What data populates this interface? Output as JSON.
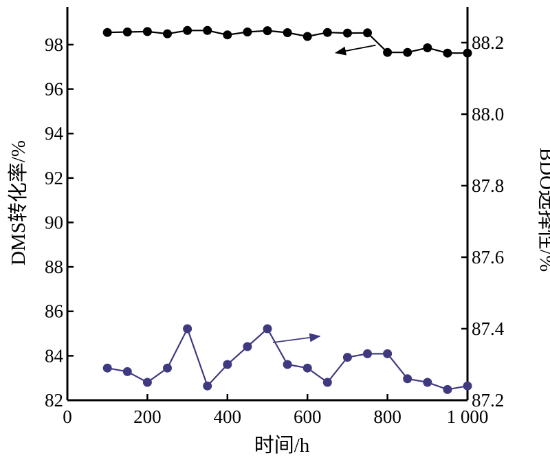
{
  "chart_data": {
    "type": "line",
    "xlabel": "时间/h",
    "ylabel_left": "DMS转化率/%",
    "ylabel_right": "BDO选择性/%",
    "xlim": [
      0,
      1000
    ],
    "ylim_left": [
      82,
      99.7
    ],
    "ylim_right": [
      87.2,
      88.3
    ],
    "x_ticks": [
      0,
      200,
      400,
      600,
      800,
      1000
    ],
    "x_tick_labels": [
      "0",
      "200",
      "400",
      "600",
      "800",
      "1 000"
    ],
    "y_left_ticks": [
      82,
      84,
      86,
      88,
      90,
      92,
      94,
      96,
      98
    ],
    "y_left_tick_labels": [
      "82",
      "84",
      "86",
      "88",
      "90",
      "92",
      "94",
      "96",
      "98"
    ],
    "y_right_ticks": [
      87.2,
      87.4,
      87.6,
      87.8,
      88.0,
      88.2
    ],
    "y_right_tick_labels": [
      "87.2",
      "87.4",
      "87.6",
      "87.8",
      "88.0",
      "88.2"
    ],
    "grid": false,
    "legend": "none",
    "series": [
      {
        "axis": "left",
        "color": "#000000",
        "x": [
          100,
          150,
          200,
          250,
          300,
          350,
          400,
          450,
          500,
          550,
          600,
          650,
          700,
          750,
          800,
          850,
          900,
          950,
          1000
        ],
        "values": [
          98.55,
          98.57,
          98.59,
          98.49,
          98.64,
          98.64,
          98.44,
          98.57,
          98.63,
          98.54,
          98.37,
          98.55,
          98.52,
          98.53,
          97.65,
          97.65,
          97.86,
          97.62,
          97.62
        ],
        "arrow": "left"
      },
      {
        "axis": "right",
        "color": "#3f3a80",
        "x": [
          100,
          150,
          200,
          250,
          300,
          350,
          400,
          450,
          500,
          550,
          600,
          650,
          700,
          750,
          800,
          850,
          900,
          950,
          1000
        ],
        "values": [
          87.29,
          87.28,
          87.25,
          87.29,
          87.4,
          87.24,
          87.3,
          87.35,
          87.4,
          87.3,
          87.29,
          87.25,
          87.32,
          87.33,
          87.33,
          87.26,
          87.25,
          87.23,
          87.24
        ],
        "arrow": "right"
      }
    ]
  }
}
